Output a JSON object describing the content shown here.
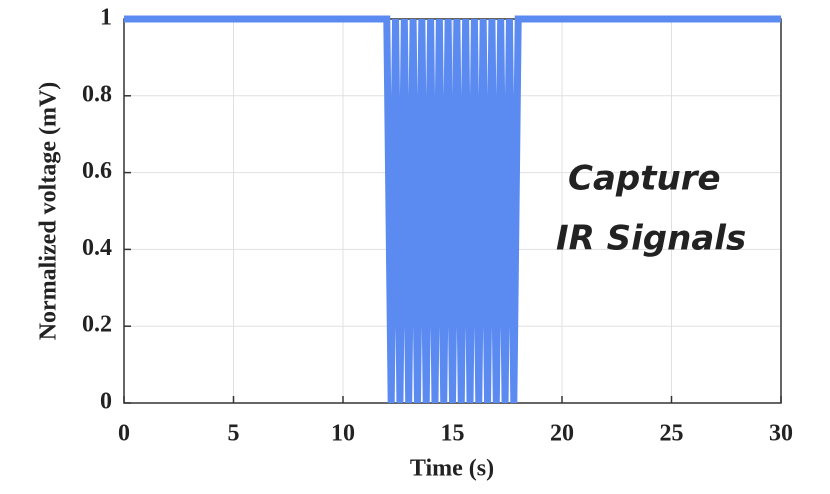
{
  "chart_data": {
    "type": "line",
    "x_label": "Time (s)",
    "y_label": "Normalized voltage (mV)",
    "annotation": [
      "Capture",
      "IR Signals"
    ],
    "xlim": [
      0,
      30
    ],
    "xticks": [
      0,
      5,
      10,
      15,
      20,
      25,
      30
    ],
    "ylim": [
      0,
      1
    ],
    "yticks": [
      0,
      0.2,
      0.4,
      0.6,
      0.8,
      1
    ],
    "grid": true,
    "series": [
      {
        "color": "#5b8bf0",
        "x": [
          0,
          12,
          12.2,
          12.4,
          12.6,
          12.8,
          13,
          13.2,
          13.4,
          13.6,
          13.8,
          14,
          14.2,
          14.4,
          14.6,
          14.8,
          15,
          15.2,
          15.4,
          15.6,
          15.8,
          16,
          16.2,
          16.4,
          16.6,
          16.8,
          17,
          17.2,
          17.4,
          17.6,
          17.8,
          18,
          30
        ],
        "values": [
          1,
          1,
          0,
          1,
          0,
          1,
          0,
          1,
          0,
          1,
          0,
          1,
          0,
          1,
          0,
          1,
          0,
          1,
          0,
          1,
          0,
          1,
          0,
          1,
          0,
          1,
          0,
          1,
          0,
          1,
          0,
          1,
          1
        ]
      }
    ]
  }
}
